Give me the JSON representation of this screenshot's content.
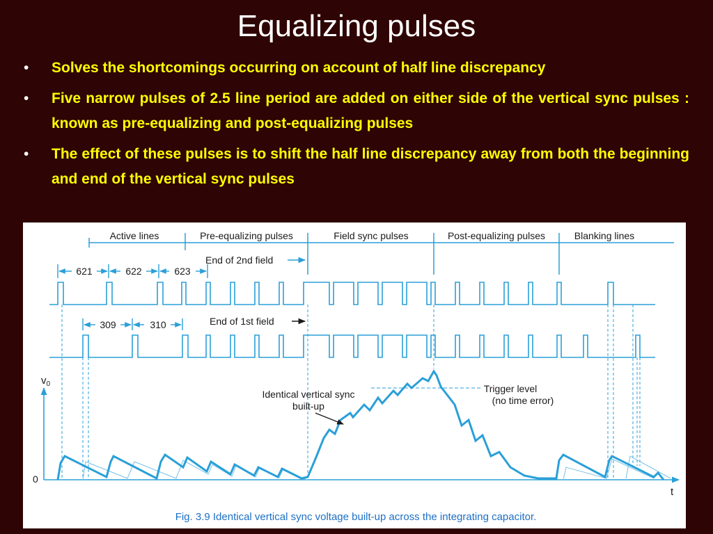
{
  "title": "Equalizing pulses",
  "bullets": [
    "Solves the shortcomings occurring on account of half line discrepancy",
    "Five narrow pulses of 2.5 line period are added on either side of the vertical sync pulses : known as pre-equalizing and post-equalizing pulses",
    "The effect of these pulses is to shift the half line discrepancy away from both the beginning and end of the vertical sync pulses"
  ],
  "figure": {
    "sections": [
      "Active lines",
      "Pre-equalizing pulses",
      "Field sync pulses",
      "Post-equalizing pulses",
      "Blanking lines"
    ],
    "line_numbers_field2": [
      "621",
      "622",
      "623"
    ],
    "line_numbers_field1": [
      "309",
      "310"
    ],
    "end_2nd_field": "End of 2nd field",
    "end_1st_field": "End of 1st field",
    "annotation_buildup": [
      "Identical vertical sync",
      "built-up"
    ],
    "annotation_trigger": [
      "Trigger level",
      "(no time error)"
    ],
    "axis_y": "v",
    "axis_y_sub": "0",
    "axis_zero": "0",
    "axis_x": "t",
    "caption": "Fig. 3.9 Identical vertical sync voltage built-up across the integrating capacitor.",
    "colors": {
      "waveform": "#2a9fd8",
      "text": "#1a1a1a",
      "caption": "#1d6fc4"
    }
  }
}
